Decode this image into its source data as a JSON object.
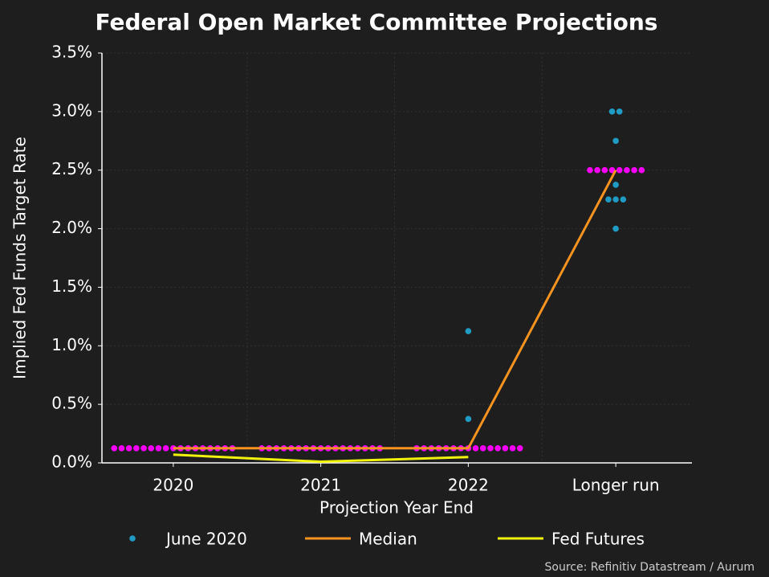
{
  "chart_data": {
    "type": "dot-plot",
    "title": "Federal Open Market Committee Projections",
    "y_label": "Implied Fed Funds Target Rate",
    "x_label": "Projection Year End",
    "source": "Source: Refinitiv Datastream / Aurum",
    "categories": [
      "2020",
      "2021",
      "2022",
      "Longer run"
    ],
    "ylim": [
      0,
      3.5
    ],
    "yticks": [
      {
        "value": 0,
        "label": "0.0%"
      },
      {
        "value": 0.5,
        "label": "0.5%"
      },
      {
        "value": 1,
        "label": "1.0%"
      },
      {
        "value": 1.5,
        "label": "1.5%"
      },
      {
        "value": 2,
        "label": "2.0%"
      },
      {
        "value": 2.5,
        "label": "2.5%"
      },
      {
        "value": 3,
        "label": "3.0%"
      },
      {
        "value": 3.5,
        "label": "3.5%"
      }
    ],
    "grid": true,
    "legend": "bottom",
    "series": [
      {
        "name": "June 2020",
        "kind": "dots",
        "color": "#1f9bc4",
        "values": [
          [],
          [],
          [
            1.125,
            0.375
          ],
          [
            3,
            3,
            2.75,
            2.375,
            2.25,
            2.25,
            2.25,
            2
          ]
        ]
      },
      {
        "kind": "dots",
        "color": "#ff00ff",
        "values": [
          [
            0.125,
            0.125,
            0.125,
            0.125,
            0.125,
            0.125,
            0.125,
            0.125,
            0.125,
            0.125,
            0.125,
            0.125,
            0.125,
            0.125,
            0.125,
            0.125,
            0.125
          ],
          [
            0.125,
            0.125,
            0.125,
            0.125,
            0.125,
            0.125,
            0.125,
            0.125,
            0.125,
            0.125,
            0.125,
            0.125,
            0.125,
            0.125,
            0.125,
            0.125,
            0.125
          ],
          [
            0.125,
            0.125,
            0.125,
            0.125,
            0.125,
            0.125,
            0.125,
            0.125,
            0.125,
            0.125,
            0.125,
            0.125,
            0.125,
            0.125,
            0.125
          ],
          [
            2.5,
            2.5,
            2.5,
            2.5,
            2.5,
            2.5,
            2.5,
            2.5
          ]
        ]
      },
      {
        "name": "Median",
        "kind": "line",
        "color": "#f7931e",
        "values": [
          0.125,
          0.125,
          0.125,
          2.5
        ]
      },
      {
        "name": "Fed Futures",
        "kind": "line",
        "color": "#f2f20f",
        "values": [
          0.07,
          0.01,
          0.05,
          null
        ]
      }
    ]
  }
}
